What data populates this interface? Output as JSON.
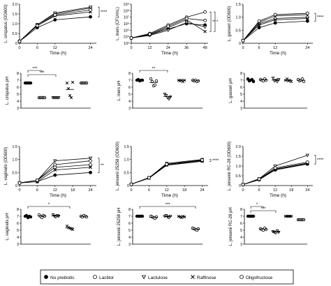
{
  "legend_labels": [
    "No prebiotic",
    "Lactitol",
    "Lactulose",
    "Raffinose",
    "Oligofructose"
  ],
  "marker_types": [
    "circle-filled",
    "circle-hollow",
    "triangle-down-hollow",
    "x-cross",
    "circle-hollow"
  ],
  "chart_data": [
    {
      "type": "line",
      "title": "",
      "ylabel": "L. crispatus (OD600)",
      "xlabel": "Time (h)",
      "x": [
        0,
        6,
        12,
        24
      ],
      "xticks": [
        "0",
        "6",
        "12",
        "24"
      ],
      "xlim": [
        0,
        26
      ],
      "ylim": [
        0,
        2
      ],
      "yticks": [
        "0",
        "0.5",
        "1.0",
        "1.5",
        "2.0"
      ],
      "yscale": "linear",
      "series": [
        {
          "values": [
            0.1,
            0.8,
            1.2,
            1.35
          ]
        },
        {
          "values": [
            0.1,
            0.95,
            1.5,
            1.8
          ]
        },
        {
          "values": [
            0.1,
            0.95,
            1.55,
            1.85
          ]
        },
        {
          "values": [
            0.1,
            0.9,
            1.4,
            1.6
          ]
        },
        {
          "values": [
            0.1,
            0.9,
            1.45,
            1.7
          ]
        }
      ],
      "significance": [
        "****"
      ]
    },
    {
      "type": "line",
      "title": "",
      "ylabel": "L. iners (CFU/mL)",
      "xlabel": "Time (h)",
      "x": [
        0,
        12,
        24,
        36,
        48
      ],
      "xticks": [
        "0",
        "12",
        "24",
        "36",
        "48"
      ],
      "xlim": [
        0,
        50
      ],
      "ylim": [
        3,
        9
      ],
      "yticks": [
        "10³",
        "10⁴",
        "10⁵",
        "10⁶",
        "10⁷",
        "10⁸",
        "10⁹"
      ],
      "yscale": "log",
      "series": [
        {
          "values": [
            3.8,
            4.3,
            5.2,
            6.0,
            5.8
          ]
        },
        {
          "values": [
            3.8,
            4.5,
            5.8,
            7.0,
            7.8
          ]
        },
        {
          "values": [
            3.8,
            4.2,
            5.0,
            6.2,
            5.5
          ]
        },
        {
          "values": [
            3.8,
            4.3,
            5.4,
            6.6,
            4.8
          ]
        },
        {
          "values": [
            3.8,
            4.4,
            5.6,
            6.8,
            6.5
          ]
        }
      ],
      "significance": [
        "**",
        "*"
      ]
    },
    {
      "type": "line",
      "title": "",
      "ylabel": "L. gasseri (OD600)",
      "xlabel": "Time (h)",
      "x": [
        0,
        6,
        12,
        24
      ],
      "xticks": [
        "0",
        "6",
        "12",
        "24"
      ],
      "xlim": [
        0,
        26
      ],
      "ylim": [
        0,
        1.5
      ],
      "yticks": [
        "0",
        "0.5",
        "1.0",
        "1.5"
      ],
      "yscale": "linear",
      "series": [
        {
          "values": [
            0.1,
            0.6,
            0.78,
            0.85
          ]
        },
        {
          "values": [
            0.1,
            0.75,
            0.95,
            1.0
          ]
        },
        {
          "values": [
            0.1,
            0.8,
            1.05,
            1.1
          ]
        },
        {
          "values": [
            0.1,
            0.7,
            0.9,
            0.95
          ]
        },
        {
          "values": [
            0.1,
            0.85,
            1.1,
            1.15
          ]
        }
      ],
      "significance": [
        "****"
      ]
    },
    {
      "type": "scatter",
      "title": "",
      "ylabel": "L. crispatus pH",
      "ylim": [
        3,
        8
      ],
      "yticks": [
        "3",
        "4",
        "5",
        "6",
        "7",
        "8"
      ],
      "groups": [
        [
          6.6,
          6.6,
          6.6,
          6.6,
          6.6
        ],
        [
          4.5,
          4.5,
          4.5,
          4.5,
          4.5
        ],
        [
          4.5,
          4.5,
          4.5,
          4.5,
          4.5
        ],
        [
          6.6,
          5.8,
          4.8,
          4.5,
          6.7
        ],
        [
          6.6,
          6.6,
          6.6,
          6.6,
          6.6
        ]
      ],
      "brackets": [
        {
          "from": 0,
          "to": 1,
          "label": "***"
        },
        {
          "from": 0,
          "to": 2,
          "label": "***"
        }
      ]
    },
    {
      "type": "scatter",
      "title": "",
      "ylabel": "L. iners pH",
      "ylim": [
        3,
        8
      ],
      "yticks": [
        "3",
        "4",
        "5",
        "6",
        "7",
        "8"
      ],
      "groups": [
        [
          7.0,
          7.1,
          6.9,
          7.0,
          7.0
        ],
        [
          7.2,
          6.8,
          6.2,
          6.3,
          6.9
        ],
        [
          5.0,
          4.8,
          4.5,
          4.3,
          4.6
        ],
        [
          7.0,
          6.9,
          7.0,
          6.8,
          7.0
        ],
        [
          7.0,
          6.9,
          7.0,
          6.8,
          6.9
        ]
      ],
      "brackets": [
        {
          "from": 0,
          "to": 2,
          "label": "**"
        }
      ]
    },
    {
      "type": "scatter",
      "title": "",
      "ylabel": "L. gasseri pH",
      "ylim": [
        3,
        8
      ],
      "yticks": [
        "3",
        "4",
        "5",
        "6",
        "7",
        "8"
      ],
      "groups": [
        [
          7.2,
          6.9,
          7.0,
          7.1,
          6.8
        ],
        [
          7.1,
          7.0,
          6.9,
          7.2,
          7.0
        ],
        [
          7.3,
          6.9,
          7.0,
          6.8,
          7.1
        ],
        [
          7.0,
          7.2,
          6.9,
          7.0,
          6.8
        ],
        [
          7.1,
          6.9,
          7.0,
          7.2,
          6.8
        ]
      ],
      "brackets": []
    },
    {
      "type": "line",
      "title": "",
      "ylabel": "L. vaginalis (OD600)",
      "xlabel": "Time (h)",
      "x": [
        0,
        6,
        12,
        24
      ],
      "xticks": [
        "0",
        "6",
        "12",
        "18",
        "24"
      ],
      "xlim": [
        0,
        26
      ],
      "ylim": [
        0,
        1.5
      ],
      "yticks": [
        "0",
        "0.5",
        "1.0",
        "1.5"
      ],
      "yscale": "linear",
      "series": [
        {
          "values": [
            0.1,
            0.15,
            0.4,
            0.5
          ]
        },
        {
          "values": [
            0.1,
            0.2,
            0.8,
            0.95
          ]
        },
        {
          "values": [
            0.1,
            0.2,
            0.95,
            1.05
          ]
        },
        {
          "values": [
            0.1,
            0.15,
            0.6,
            0.7
          ]
        },
        {
          "values": [
            0.1,
            0.2,
            0.7,
            0.8
          ]
        }
      ],
      "significance": [
        "**"
      ]
    },
    {
      "type": "line",
      "title": "",
      "ylabel": "L. jensenii 25258 (OD600)",
      "xlabel": "Time (h)",
      "x": [
        0,
        6,
        12,
        24
      ],
      "xticks": [
        "0",
        "6",
        "12",
        "18",
        "24"
      ],
      "xlim": [
        0,
        26
      ],
      "ylim": [
        0,
        1.5
      ],
      "yticks": [
        "0",
        "0.5",
        "1.0",
        "1.5"
      ],
      "yscale": "linear",
      "series": [
        {
          "values": [
            0.05,
            0.3,
            0.8,
            0.95
          ]
        },
        {
          "values": [
            0.05,
            0.3,
            0.82,
            0.97
          ]
        },
        {
          "values": [
            0.05,
            0.3,
            0.85,
            1.0
          ]
        },
        {
          "values": [
            0.05,
            0.28,
            0.78,
            0.93
          ]
        },
        {
          "values": [
            0.05,
            0.3,
            0.82,
            0.98
          ]
        }
      ],
      "significance": [
        "****"
      ]
    },
    {
      "type": "line",
      "title": "",
      "ylabel": "L. jensenii RC-28 (OD600)",
      "xlabel": "Time (h)",
      "x": [
        0,
        6,
        12,
        24
      ],
      "xticks": [
        "0",
        "6",
        "12",
        "18",
        "24"
      ],
      "xlim": [
        0,
        26
      ],
      "ylim": [
        0,
        2
      ],
      "yticks": [
        "0",
        "0.5",
        "1.0",
        "1.5",
        "2.0"
      ],
      "yscale": "linear",
      "series": [
        {
          "values": [
            0.05,
            0.3,
            0.8,
            1.1
          ]
        },
        {
          "values": [
            0.05,
            0.32,
            0.85,
            1.15
          ]
        },
        {
          "values": [
            0.05,
            0.35,
            1.0,
            1.55
          ]
        },
        {
          "values": [
            0.05,
            0.3,
            0.82,
            1.12
          ]
        },
        {
          "values": [
            0.05,
            0.33,
            0.9,
            1.2
          ]
        }
      ],
      "significance": [
        "****"
      ]
    },
    {
      "type": "scatter",
      "title": "",
      "ylabel": "L. vaginalis pH",
      "ylim": [
        3,
        8
      ],
      "yticks": [
        "3",
        "4",
        "5",
        "6",
        "7",
        "8"
      ],
      "groups": [
        [
          7.0,
          7.1,
          6.8,
          7.0,
          6.9
        ],
        [
          7.2,
          7.0,
          6.8,
          7.1,
          7.0
        ],
        [
          7.2,
          7.0,
          6.9,
          7.1,
          7.0
        ],
        [
          5.6,
          5.4,
          5.3,
          5.2,
          5.1
        ],
        [
          7.0,
          6.9,
          7.1,
          7.0,
          6.9
        ]
      ],
      "brackets": [
        {
          "from": 0,
          "to": 3,
          "label": "*"
        }
      ]
    },
    {
      "type": "scatter",
      "title": "",
      "ylabel": "L. jensenii 25258 pH",
      "ylim": [
        3,
        8
      ],
      "yticks": [
        "3",
        "4",
        "5",
        "6",
        "7",
        "8"
      ],
      "groups": [
        [
          7.0,
          7.0,
          7.0,
          7.0,
          7.0
        ],
        [
          7.0,
          6.9,
          6.8,
          6.7,
          6.9
        ],
        [
          7.0,
          7.1,
          6.9,
          6.8,
          7.0
        ],
        [
          7.0,
          6.9,
          6.8,
          7.0,
          6.9
        ],
        [
          5.3,
          5.2,
          5.1,
          5.0,
          5.2
        ]
      ],
      "brackets": [
        {
          "from": 0,
          "to": 4,
          "label": "***"
        }
      ]
    },
    {
      "type": "scatter",
      "title": "",
      "ylabel": "L. jensenii RC-28 pH",
      "ylim": [
        3,
        8
      ],
      "yticks": [
        "3",
        "4",
        "5",
        "6",
        "7",
        "8"
      ],
      "groups": [
        [
          7.0,
          7.0,
          7.0,
          7.0,
          7.0
        ],
        [
          5.2,
          5.1,
          5.0,
          5.3,
          5.1
        ],
        [
          4.8,
          4.7,
          4.6,
          4.9,
          4.7
        ],
        [
          7.0,
          7.0,
          7.0,
          7.0,
          7.0
        ],
        [
          6.5,
          6.5,
          6.5,
          6.5,
          6.5
        ]
      ],
      "brackets": [
        {
          "from": 0,
          "to": 1,
          "label": "*"
        },
        {
          "from": 0,
          "to": 2,
          "label": "***"
        }
      ]
    }
  ]
}
